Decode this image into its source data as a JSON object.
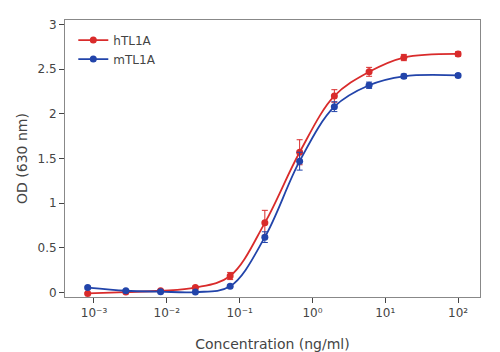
{
  "chart_data": {
    "type": "scatter",
    "xlabel": "Concentration (ng/ml)",
    "ylabel": "OD (630 nm)",
    "log": "x",
    "x": [
      0.00082,
      0.00274,
      0.00822,
      0.0247,
      0.0741,
      0.222,
      0.667,
      2.0,
      6.0,
      18.0,
      100.0
    ],
    "series": [
      {
        "name": "hTL1A",
        "color": "#d92b2b",
        "values": [
          -0.01,
          0.005,
          0.02,
          0.055,
          0.185,
          0.78,
          1.57,
          2.2,
          2.47,
          2.63,
          2.67
        ],
        "yerr": [
          0.01,
          0.005,
          0.01,
          0.015,
          0.04,
          0.14,
          0.14,
          0.07,
          0.05,
          0.035,
          0.025
        ]
      },
      {
        "name": "mTL1A",
        "color": "#2244aa",
        "values": [
          0.055,
          0.02,
          0.01,
          0.005,
          0.07,
          0.62,
          1.47,
          2.08,
          2.32,
          2.42,
          2.43
        ],
        "yerr": [
          0.015,
          0.01,
          0.005,
          0.005,
          0.015,
          0.06,
          0.1,
          0.055,
          0.035,
          0.025,
          0.02
        ]
      }
    ],
    "marker": "circle",
    "line_style": "solid",
    "xlim": [
      0.0004,
      200
    ],
    "xticks": [
      {
        "value": 0.001,
        "label": "10⁻³"
      },
      {
        "value": 0.01,
        "label": "10⁻²"
      },
      {
        "value": 0.1,
        "label": "10⁻¹"
      },
      {
        "value": 1,
        "label": "10⁰"
      },
      {
        "value": 10,
        "label": "10¹"
      },
      {
        "value": 100,
        "label": "10²"
      }
    ],
    "ylim": [
      -0.05,
      3.05
    ],
    "yticks": [
      0.0,
      0.5,
      1.0,
      1.5,
      2.0,
      2.5,
      3.0
    ],
    "grid": false,
    "legend": "upper left"
  }
}
